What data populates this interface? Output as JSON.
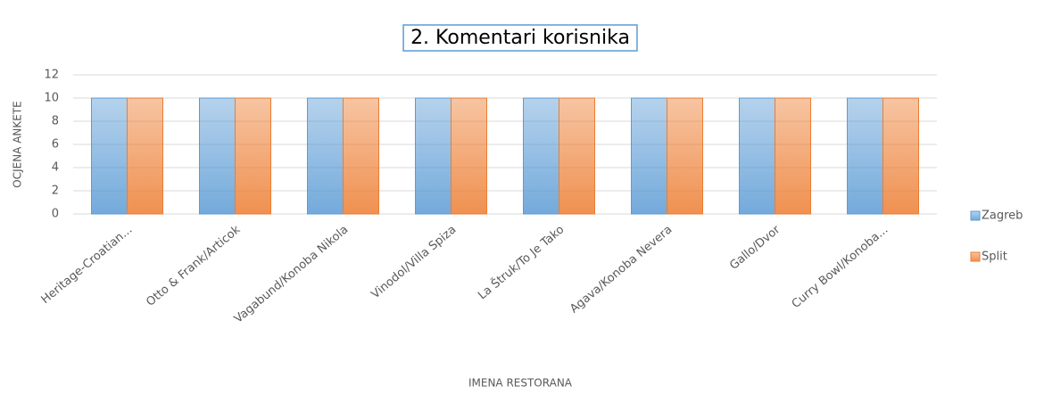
{
  "chart_data": {
    "type": "bar",
    "title": "2. Komentari korisnika",
    "categories": [
      "Heritage-Croatian...",
      "Otto & Frank/Articok",
      "Vagabund/Konoba Nikola",
      "Vinodol/Villa Spiza",
      "La Štruk/To Je Tako",
      "Agava/Konoba Nevera",
      "Gallo/Dvor",
      "Curry Bowl/Konoba..."
    ],
    "series": [
      {
        "name": "Zagreb",
        "color": "#5b9bd5",
        "values": [
          10,
          10,
          10,
          10,
          10,
          10,
          10,
          10
        ]
      },
      {
        "name": "Split",
        "color": "#ed7d31",
        "values": [
          10,
          10,
          10,
          10,
          10,
          10,
          10,
          10
        ]
      }
    ],
    "ylim": [
      0,
      12
    ],
    "yticks": [
      0,
      2,
      4,
      6,
      8,
      10,
      12
    ],
    "grid": true,
    "legend": "right",
    "xlabel": "IMENA RESTORANA",
    "ylabel": "OCJENA ANKETE"
  }
}
